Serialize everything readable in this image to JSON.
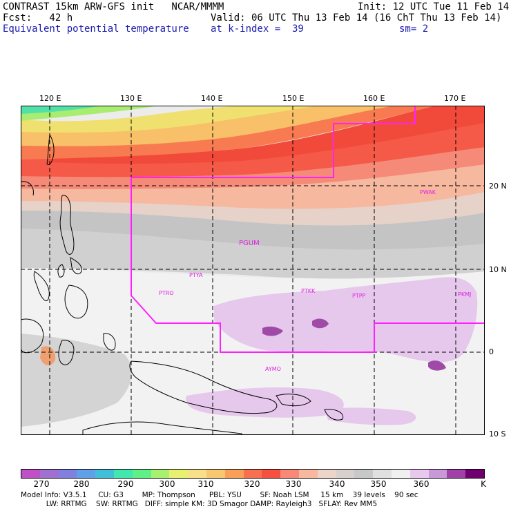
{
  "header": {
    "line1_left": "CONTRAST 15km ARW-GFS init   NCAR/MMMM",
    "line1_right": "Init: 12 UTC Tue 11 Feb 14",
    "line2_left": "Fcst:   42 h",
    "line2_right": "Valid: 06 UTC Thu 13 Feb 14 (16 ChT Thu 13 Feb 14)",
    "line3_left": "Equivalent potential temperature",
    "line3_mid": "at k-index =  39",
    "line3_right": "sm= 2"
  },
  "axes": {
    "lon_labels": [
      "120 E",
      "130 E",
      "140 E",
      "150 E",
      "160 E",
      "170 E"
    ],
    "lat_labels": [
      "20 N",
      "10 N",
      "0",
      "10 S"
    ]
  },
  "stations": [
    "PWAK",
    "PGUM",
    "PTYA",
    "PTRO",
    "PTKK",
    "PTPP",
    "PKMJ",
    "AYMO"
  ],
  "colorbar": {
    "colors": [
      "#c050c8",
      "#a070d0",
      "#8080e0",
      "#5fa0e8",
      "#40c0d8",
      "#40e8b0",
      "#60f088",
      "#a8f070",
      "#e8f070",
      "#f8e088",
      "#f8c870",
      "#f8a058",
      "#f87050",
      "#f85040",
      "#f88878",
      "#f8b8a0",
      "#ecd4c8",
      "#d8d0cc",
      "#c8c8c8",
      "#e0e0e0",
      "#f0f0f0",
      "#e8c8ec",
      "#c898d8",
      "#a040a8",
      "#700070"
    ],
    "labels": [
      "270",
      "280",
      "290",
      "300",
      "310",
      "320",
      "330",
      "340",
      "350",
      "360",
      "K"
    ]
  },
  "footer": {
    "line1": "Model Info: V3.5.1     CU: G3        MP: Thompson      PBL: YSU        SF: Noah LSM     15 km    39 levels    90 sec",
    "line2": "           LW: RRTMG    SW: RRTMG   DIFF: simple KM: 3D Smagor DAMP: Rayleigh3   SFLAY: Rev MM5"
  }
}
